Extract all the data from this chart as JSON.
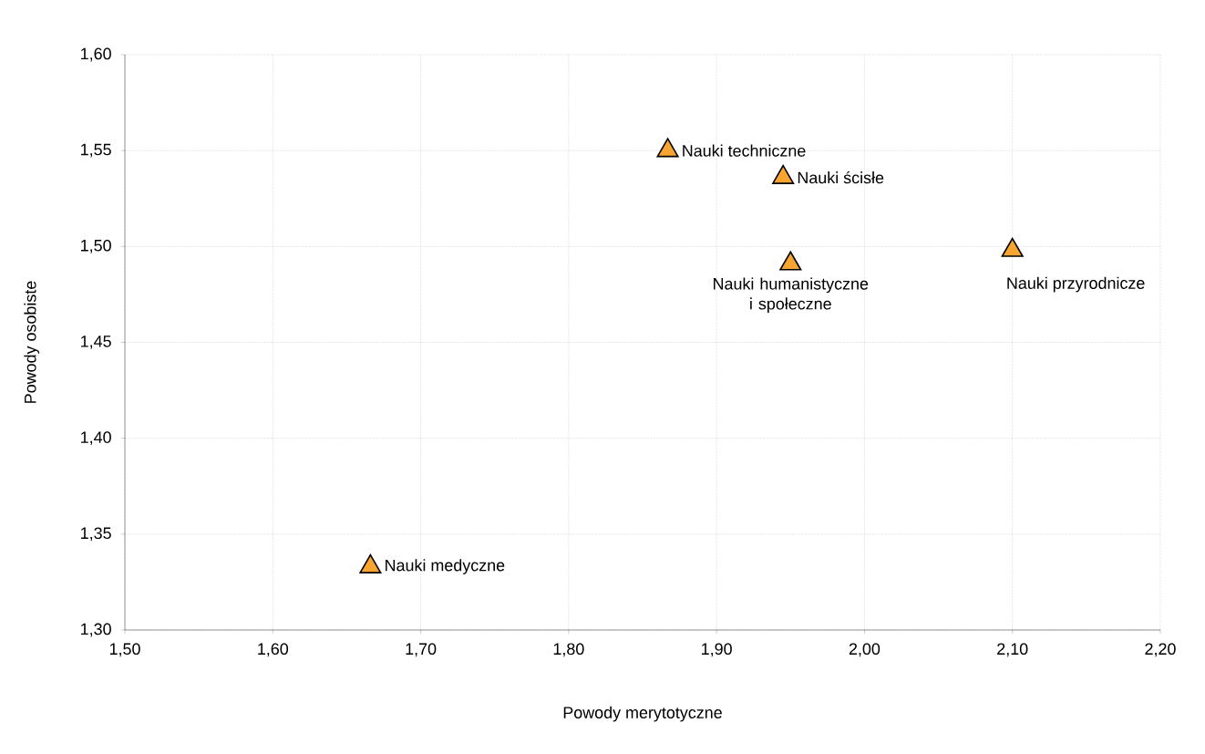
{
  "chart_data": {
    "type": "scatter",
    "xlabel": "Powody merytotyczne",
    "ylabel": "Powody osobiste",
    "series": [
      {
        "color": "#f7a431",
        "x": [
          1.867,
          1.945,
          1.95,
          2.1,
          1.666
        ],
        "values": [
          1.55,
          1.536,
          1.491,
          1.498,
          1.333
        ]
      }
    ],
    "annotations": [
      {
        "text": "Nauki techniczne",
        "x": 1.867,
        "y": 1.55
      },
      {
        "text": "Nauki ścisłe",
        "x": 1.945,
        "y": 1.536
      },
      {
        "text": "Nauki humanistyczne i społeczne",
        "x": 1.95,
        "y": 1.491
      },
      {
        "text": "Nauki przyrodnicze",
        "x": 2.1,
        "y": 1.498
      },
      {
        "text": "Nauki medyczne",
        "x": 1.666,
        "y": 1.333
      }
    ],
    "xlim": [
      1.5,
      2.2
    ],
    "ylim": [
      1.3,
      1.6
    ],
    "xticks": [
      {
        "value": 1.5,
        "label": "1,50"
      },
      {
        "value": 1.6,
        "label": "1,60"
      },
      {
        "value": 1.7,
        "label": "1,70"
      },
      {
        "value": 1.8,
        "label": "1,80"
      },
      {
        "value": 1.9,
        "label": "1,90"
      },
      {
        "value": 2.0,
        "label": "2,00"
      },
      {
        "value": 2.1,
        "label": "2,10"
      },
      {
        "value": 2.2,
        "label": "2,20"
      }
    ],
    "yticks": [
      {
        "value": 1.3,
        "label": "1,30"
      },
      {
        "value": 1.35,
        "label": "1,35"
      },
      {
        "value": 1.4,
        "label": "1,40"
      },
      {
        "value": 1.45,
        "label": "1,45"
      },
      {
        "value": 1.5,
        "label": "1,50"
      },
      {
        "value": 1.55,
        "label": "1,55"
      },
      {
        "value": 1.6,
        "label": "1,60"
      }
    ],
    "grid": true,
    "marker": "triangle"
  }
}
